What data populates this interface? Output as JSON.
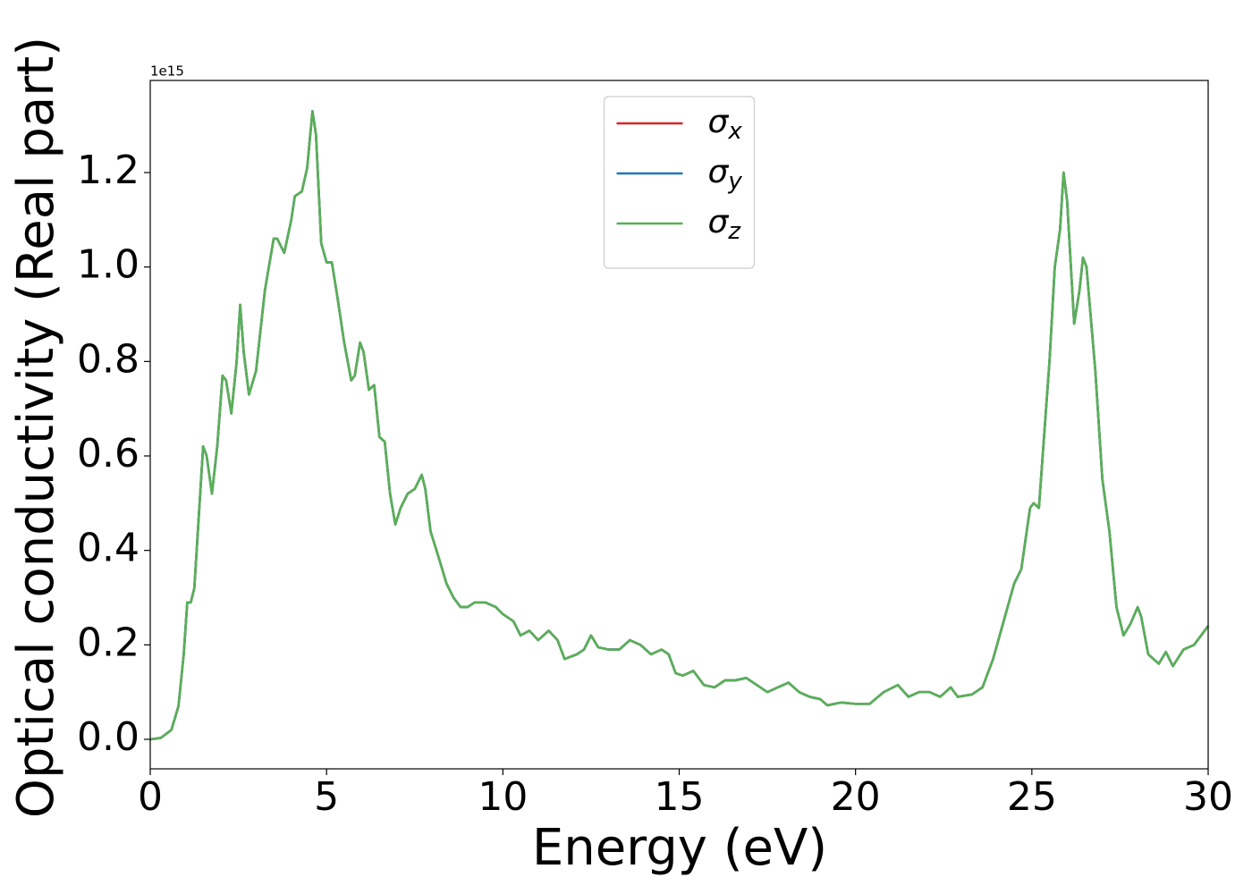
{
  "chart_data": {
    "type": "line",
    "xlabel": "Energy (eV)",
    "ylabel": "Optical conductivity (Real part)",
    "y_offset_text": "1e15",
    "xlim": [
      0,
      30
    ],
    "xticks": [
      0,
      5,
      10,
      15,
      20,
      25,
      30
    ],
    "ylim": [
      -0.0625,
      1.395
    ],
    "yticks": [
      {
        "value": 0,
        "label": "0.0"
      },
      0.2,
      0.4,
      0.6,
      0.8,
      {
        "value": 1,
        "label": "1.0"
      },
      1.2
    ],
    "legend": "upper center",
    "x": [
      0,
      0.3,
      0.6,
      0.8,
      0.95,
      1.05,
      1.15,
      1.25,
      1.4,
      1.5,
      1.6,
      1.75,
      1.9,
      2.05,
      2.15,
      2.3,
      2.45,
      2.55,
      2.65,
      2.8,
      3.0,
      3.25,
      3.5,
      3.6,
      3.8,
      4.0,
      4.1,
      4.3,
      4.45,
      4.6,
      4.7,
      4.85,
      5.0,
      5.15,
      5.3,
      5.5,
      5.7,
      5.8,
      5.95,
      6.05,
      6.2,
      6.35,
      6.5,
      6.65,
      6.8,
      6.95,
      7.1,
      7.3,
      7.5,
      7.7,
      7.8,
      7.95,
      8.2,
      8.4,
      8.6,
      8.8,
      9.0,
      9.2,
      9.5,
      9.8,
      10.0,
      10.3,
      10.5,
      10.75,
      11.0,
      11.3,
      11.55,
      11.75,
      12.1,
      12.3,
      12.5,
      12.7,
      13.0,
      13.3,
      13.6,
      13.9,
      14.2,
      14.5,
      14.7,
      14.9,
      15.1,
      15.4,
      15.7,
      16.0,
      16.3,
      16.6,
      16.9,
      17.2,
      17.5,
      17.8,
      18.1,
      18.4,
      18.7,
      19.0,
      19.2,
      19.6,
      20.0,
      20.4,
      20.8,
      21.2,
      21.5,
      21.8,
      22.1,
      22.4,
      22.7,
      22.9,
      23.3,
      23.6,
      23.9,
      24.2,
      24.5,
      24.7,
      24.95,
      25.05,
      25.2,
      25.5,
      25.65,
      25.8,
      25.9,
      26.0,
      26.2,
      26.35,
      26.45,
      26.55,
      26.8,
      27.0,
      27.2,
      27.4,
      27.6,
      27.8,
      28.0,
      28.1,
      28.3,
      28.6,
      28.8,
      29.0,
      29.3,
      29.6,
      30.0
    ],
    "series": [
      {
        "name": "σx",
        "color": "#d62728",
        "values": [
          0,
          0.003,
          0.02,
          0.07,
          0.18,
          0.29,
          0.29,
          0.32,
          0.5,
          0.62,
          0.6,
          0.52,
          0.62,
          0.77,
          0.76,
          0.69,
          0.8,
          0.92,
          0.82,
          0.73,
          0.78,
          0.95,
          1.06,
          1.06,
          1.03,
          1.1,
          1.15,
          1.16,
          1.21,
          1.33,
          1.28,
          1.05,
          1.01,
          1.01,
          0.94,
          0.84,
          0.76,
          0.77,
          0.84,
          0.82,
          0.74,
          0.75,
          0.64,
          0.63,
          0.52,
          0.455,
          0.49,
          0.52,
          0.53,
          0.56,
          0.53,
          0.44,
          0.38,
          0.33,
          0.3,
          0.28,
          0.28,
          0.29,
          0.29,
          0.28,
          0.265,
          0.25,
          0.22,
          0.23,
          0.21,
          0.23,
          0.21,
          0.17,
          0.18,
          0.19,
          0.22,
          0.195,
          0.19,
          0.19,
          0.21,
          0.2,
          0.18,
          0.19,
          0.18,
          0.14,
          0.135,
          0.145,
          0.115,
          0.11,
          0.125,
          0.125,
          0.13,
          0.115,
          0.1,
          0.11,
          0.12,
          0.1,
          0.09,
          0.085,
          0.072,
          0.078,
          0.075,
          0.075,
          0.1,
          0.115,
          0.09,
          0.1,
          0.1,
          0.09,
          0.11,
          0.09,
          0.095,
          0.11,
          0.17,
          0.25,
          0.33,
          0.36,
          0.49,
          0.5,
          0.49,
          0.8,
          1.0,
          1.08,
          1.2,
          1.14,
          0.88,
          0.95,
          1.02,
          1.0,
          0.78,
          0.55,
          0.44,
          0.28,
          0.22,
          0.245,
          0.28,
          0.26,
          0.18,
          0.16,
          0.185,
          0.155,
          0.19,
          0.2,
          0.24
        ]
      },
      {
        "name": "σy",
        "color": "#1f77b4",
        "values": [
          0,
          0.003,
          0.02,
          0.07,
          0.18,
          0.29,
          0.29,
          0.32,
          0.5,
          0.62,
          0.6,
          0.52,
          0.62,
          0.77,
          0.76,
          0.69,
          0.8,
          0.92,
          0.82,
          0.73,
          0.78,
          0.95,
          1.06,
          1.06,
          1.03,
          1.1,
          1.15,
          1.16,
          1.21,
          1.33,
          1.28,
          1.05,
          1.01,
          1.01,
          0.94,
          0.84,
          0.76,
          0.77,
          0.84,
          0.82,
          0.74,
          0.75,
          0.64,
          0.63,
          0.52,
          0.455,
          0.49,
          0.52,
          0.53,
          0.56,
          0.53,
          0.44,
          0.38,
          0.33,
          0.3,
          0.28,
          0.28,
          0.29,
          0.29,
          0.28,
          0.265,
          0.25,
          0.22,
          0.23,
          0.21,
          0.23,
          0.21,
          0.17,
          0.18,
          0.19,
          0.22,
          0.195,
          0.19,
          0.19,
          0.21,
          0.2,
          0.18,
          0.19,
          0.18,
          0.14,
          0.135,
          0.145,
          0.115,
          0.11,
          0.125,
          0.125,
          0.13,
          0.115,
          0.1,
          0.11,
          0.12,
          0.1,
          0.09,
          0.085,
          0.072,
          0.078,
          0.075,
          0.075,
          0.1,
          0.115,
          0.09,
          0.1,
          0.1,
          0.09,
          0.11,
          0.09,
          0.095,
          0.11,
          0.17,
          0.25,
          0.33,
          0.36,
          0.49,
          0.5,
          0.49,
          0.8,
          1.0,
          1.08,
          1.2,
          1.14,
          0.88,
          0.95,
          1.02,
          1.0,
          0.78,
          0.55,
          0.44,
          0.28,
          0.22,
          0.245,
          0.28,
          0.26,
          0.18,
          0.16,
          0.185,
          0.155,
          0.19,
          0.2,
          0.24
        ]
      },
      {
        "name": "σz",
        "color": "#59b057",
        "values": [
          0,
          0.003,
          0.02,
          0.07,
          0.18,
          0.29,
          0.29,
          0.32,
          0.5,
          0.62,
          0.6,
          0.52,
          0.62,
          0.77,
          0.76,
          0.69,
          0.8,
          0.92,
          0.82,
          0.73,
          0.78,
          0.95,
          1.06,
          1.06,
          1.03,
          1.1,
          1.15,
          1.16,
          1.21,
          1.33,
          1.28,
          1.05,
          1.01,
          1.01,
          0.94,
          0.84,
          0.76,
          0.77,
          0.84,
          0.82,
          0.74,
          0.75,
          0.64,
          0.63,
          0.52,
          0.455,
          0.49,
          0.52,
          0.53,
          0.56,
          0.53,
          0.44,
          0.38,
          0.33,
          0.3,
          0.28,
          0.28,
          0.29,
          0.29,
          0.28,
          0.265,
          0.25,
          0.22,
          0.23,
          0.21,
          0.23,
          0.21,
          0.17,
          0.18,
          0.19,
          0.22,
          0.195,
          0.19,
          0.19,
          0.21,
          0.2,
          0.18,
          0.19,
          0.18,
          0.14,
          0.135,
          0.145,
          0.115,
          0.11,
          0.125,
          0.125,
          0.13,
          0.115,
          0.1,
          0.11,
          0.12,
          0.1,
          0.09,
          0.085,
          0.072,
          0.078,
          0.075,
          0.075,
          0.1,
          0.115,
          0.09,
          0.1,
          0.1,
          0.09,
          0.11,
          0.09,
          0.095,
          0.11,
          0.17,
          0.25,
          0.33,
          0.36,
          0.49,
          0.5,
          0.49,
          0.8,
          1.0,
          1.08,
          1.2,
          1.14,
          0.88,
          0.95,
          1.02,
          1.0,
          0.78,
          0.55,
          0.44,
          0.28,
          0.22,
          0.245,
          0.28,
          0.26,
          0.18,
          0.16,
          0.185,
          0.155,
          0.19,
          0.2,
          0.24
        ]
      }
    ]
  }
}
